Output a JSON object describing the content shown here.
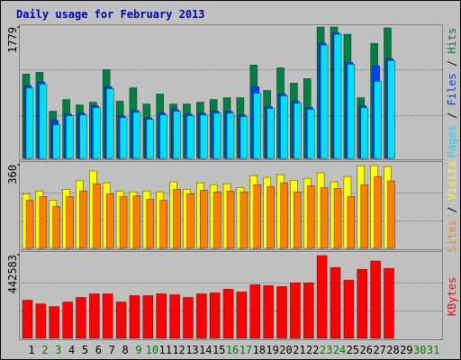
{
  "chart_data": [
    {
      "type": "bar",
      "title": "Daily usage for February 2013",
      "separator": "/",
      "ylim": [
        0,
        1779
      ],
      "yticks": [
        1779
      ],
      "series": [
        {
          "name": "Hits",
          "color": "#008040",
          "values": [
            1141,
            1166,
            638,
            797,
            724,
            761,
            1202,
            773,
            957,
            736,
            871,
            736,
            736,
            761,
            797,
            822,
            822,
            1264,
            920,
            1227,
            1018,
            1080,
            1779,
            1779,
            1681,
            822,
            1558,
            1767,
            null,
            null,
            null
          ]
        },
        {
          "name": "Files",
          "color": "#0040ff",
          "values": [
            985,
            1035,
            515,
            600,
            612,
            712,
            970,
            575,
            650,
            550,
            612,
            660,
            600,
            612,
            637,
            637,
            590,
            969,
            700,
            872,
            772,
            690,
            1560,
            1700,
            1300,
            712,
            1252,
            1350,
            null,
            null,
            null
          ]
        },
        {
          "name": "Pages",
          "color": "#00e0ff",
          "values": [
            957,
            1006,
            454,
            577,
            589,
            687,
            945,
            552,
            626,
            528,
            589,
            638,
            577,
            589,
            613,
            613,
            564,
            883,
            675,
            847,
            748,
            663,
            1534,
            1681,
            1276,
            687,
            1043,
            1325,
            null,
            null,
            null
          ]
        }
      ]
    },
    {
      "type": "bar",
      "separator": "/",
      "ylim": [
        0,
        360
      ],
      "yticks": [
        360
      ],
      "series": [
        {
          "name": "Visits",
          "color": "#ffff00",
          "values": [
            235,
            247,
            207,
            254,
            293,
            333,
            282,
            247,
            243,
            247,
            243,
            286,
            254,
            282,
            274,
            278,
            262,
            313,
            305,
            317,
            293,
            301,
            325,
            286,
            309,
            356,
            356,
            352,
            null,
            null,
            null
          ]
        },
        {
          "name": "Sites",
          "color": "#ff8000",
          "values": [
            207,
            223,
            180,
            223,
            247,
            278,
            235,
            223,
            227,
            211,
            207,
            254,
            235,
            250,
            243,
            247,
            243,
            274,
            266,
            282,
            243,
            270,
            262,
            258,
            223,
            274,
            309,
            290,
            null,
            null,
            null
          ]
        }
      ]
    },
    {
      "type": "bar",
      "ylim": [
        0,
        442583
      ],
      "yticks": [
        442583
      ],
      "categories": [
        "1",
        "2",
        "3",
        "4",
        "5",
        "6",
        "7",
        "8",
        "9",
        "10",
        "11",
        "12",
        "13",
        "14",
        "15",
        "16",
        "17",
        "18",
        "19",
        "20",
        "21",
        "22",
        "23",
        "24",
        "25",
        "26",
        "27",
        "28",
        "29",
        "30",
        "31"
      ],
      "category_colors": [
        "#000000",
        "#008000",
        "#008000",
        "#000000",
        "#000000",
        "#000000",
        "#000000",
        "#000000",
        "#008000",
        "#008000",
        "#000000",
        "#000000",
        "#000000",
        "#000000",
        "#000000",
        "#008000",
        "#008000",
        "#000000",
        "#000000",
        "#000000",
        "#000000",
        "#000000",
        "#008000",
        "#008000",
        "#000000",
        "#000000",
        "#000000",
        "#000000",
        "#000000",
        "#008000",
        "#008000"
      ],
      "series": [
        {
          "name": "KBytes",
          "color": "#ff0000",
          "values": [
            202062,
            182818,
            168385,
            192440,
            216495,
            235739,
            235739,
            192440,
            226117,
            226117,
            235739,
            230928,
            216495,
            235739,
            240550,
            259794,
            245361,
            283849,
            279038,
            274227,
            293471,
            293471,
            437772,
            375258,
            307904,
            365636,
            408935,
            370447,
            null,
            null,
            null
          ]
        }
      ]
    }
  ]
}
